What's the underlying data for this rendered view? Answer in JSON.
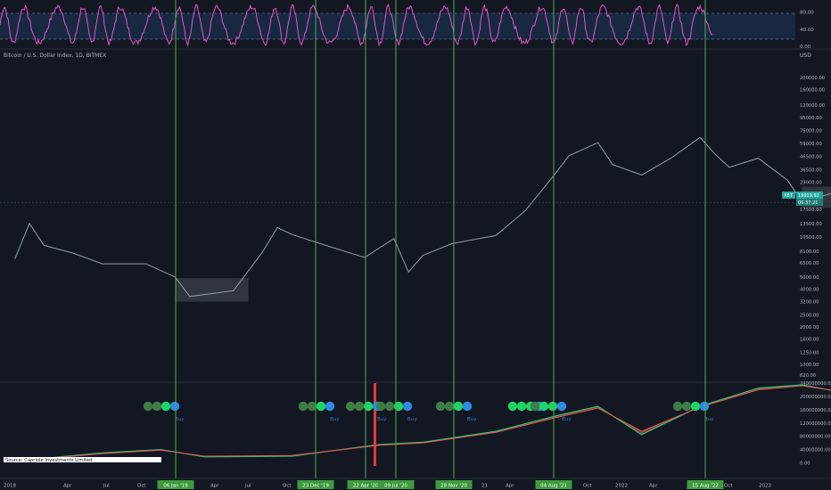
{
  "header": {
    "symbol_title": "Bitcoin / U.S. Dollar Index, 1D, BITMEX",
    "currency": "USD"
  },
  "colors": {
    "background": "#131722",
    "osc_line": "#e056c8",
    "osc_band": "#1e3a5f",
    "cycle_line": "#4caf50",
    "red_marker": "#e53935",
    "buy_dot_dark": "#3e7d45",
    "buy_dot_light": "#1fd466",
    "buy_dot_blue": "#2f8ae6",
    "buy_label": "#2f7bd1",
    "ma_green": "#22c77a",
    "ma_red": "#ef5350",
    "price_badge": "#26a69a",
    "source_bg": "#ffffff",
    "date_badge": "#3d9a3d"
  },
  "price_badge": {
    "ticker": "XBT",
    "price": "19919.92",
    "countdown": "06:37:21"
  },
  "source_label": "Source: Capriole Investments Limited",
  "buy_label": "Buy",
  "chart_data": [
    {
      "type": "line",
      "name": "oscillator",
      "y_ticks": [
        "80.00",
        "40.00",
        "0.00"
      ],
      "ylim": [
        0,
        100
      ],
      "band": [
        20,
        80
      ]
    },
    {
      "type": "line",
      "name": "price",
      "scale": "log",
      "y_ticks": [
        "200000.00",
        "160000.00",
        "120000.00",
        "95000.00",
        "75000.00",
        "59000.00",
        "46500.00",
        "36500.00",
        "29000.00",
        "22500.00",
        "17500.00",
        "13500.00",
        "10500.00",
        "8100.00",
        "6500.00",
        "5000.00",
        "4000.00",
        "3200.00",
        "2500.00",
        "2000.00",
        "1600.00",
        "1250.00",
        "1000.00",
        "820.00"
      ],
      "x_ticks": [
        "2018",
        "Apr",
        "Jul",
        "Oct",
        "Apr",
        "Jul",
        "Oct",
        "Apr",
        "Jul",
        "Oct",
        "21",
        "Apr",
        "Jul",
        "Oct",
        "2022",
        "Apr",
        "Jul",
        "Oct",
        "2023"
      ],
      "x": [
        "2017-12",
        "2018-01",
        "2018-02",
        "2018-04",
        "2018-06",
        "2018-09",
        "2018-11",
        "2018-12",
        "2019-03",
        "2019-05",
        "2019-06",
        "2019-07",
        "2019-10",
        "2019-12",
        "2020-02",
        "2020-03",
        "2020-04",
        "2020-06",
        "2020-09",
        "2020-11",
        "2021-01",
        "2021-02",
        "2021-04",
        "2021-05",
        "2021-07",
        "2021-09",
        "2021-11",
        "2021-12",
        "2022-01",
        "2022-03",
        "2022-05",
        "2022-06",
        "2022-08",
        "2022-09"
      ],
      "values": [
        7000,
        13500,
        9000,
        7800,
        6400,
        6400,
        5000,
        3500,
        3900,
        8000,
        12500,
        11000,
        8500,
        7200,
        10200,
        5500,
        7500,
        9300,
        10800,
        17000,
        33000,
        47000,
        60000,
        40000,
        33000,
        45000,
        66000,
        49000,
        38000,
        45000,
        30000,
        20000,
        23500,
        19900
      ],
      "zones": [
        {
          "from": "2018-11",
          "to": "2019-04",
          "low": 3200,
          "high": 4900
        },
        {
          "from": "2022-06",
          "to": "2022-10",
          "low": 18000,
          "high": 26500
        }
      ]
    },
    {
      "type": "line",
      "name": "moving-averages",
      "y_ticks": [
        "240000000.00",
        "200000000.00",
        "160000000.00",
        "120000000.00",
        "80000000.00",
        "40000000.00",
        "0.00"
      ],
      "ylim": [
        0,
        240000000
      ],
      "x": [
        "2017-12",
        "2018-06",
        "2018-10",
        "2019-01",
        "2019-07",
        "2020-01",
        "2020-04",
        "2020-09",
        "2021-01",
        "2021-04",
        "2021-07",
        "2021-11",
        "2022-03",
        "2022-06",
        "2022-09"
      ],
      "series": [
        {
          "values": [
            5000000,
            30000000,
            40000000,
            18000000,
            20000000,
            55000000,
            62000000,
            95000000,
            140000000,
            170000000,
            85000000,
            170000000,
            225000000,
            235000000,
            210000000
          ]
        },
        {
          "values": [
            5000000,
            28000000,
            38000000,
            20000000,
            22000000,
            53000000,
            60000000,
            92000000,
            135000000,
            165000000,
            95000000,
            168000000,
            220000000,
            232000000,
            212000000
          ]
        }
      ]
    }
  ],
  "cycle_dates": [
    "06 Jan '19",
    "23 Dec '19",
    "22 Apr '20",
    "09 Jul '20",
    "28 Nov '20",
    "04 Aug '21",
    "15 Aug '22"
  ],
  "buy_signal_groups": [
    {
      "dots": [
        "dark",
        "dark",
        "light",
        "blue"
      ],
      "label": true
    },
    {
      "dots": [
        "dark",
        "dark",
        "light",
        "blue"
      ],
      "label": true
    },
    {
      "dots": [
        "dark",
        "dark",
        "light",
        "blue"
      ],
      "label": true
    },
    {
      "dots": [
        "dark",
        "dark",
        "light",
        "blue"
      ],
      "label": true
    },
    {
      "dots": [
        "dark",
        "dark",
        "light",
        "blue"
      ],
      "label": true
    },
    {
      "dots": [
        "light",
        "light",
        "light",
        "blue"
      ],
      "label": false
    },
    {
      "dots": [
        "dark",
        "light",
        "light",
        "blue"
      ],
      "label": true
    },
    {
      "dots": [
        "dark",
        "dark",
        "light",
        "blue"
      ],
      "label": true
    }
  ]
}
